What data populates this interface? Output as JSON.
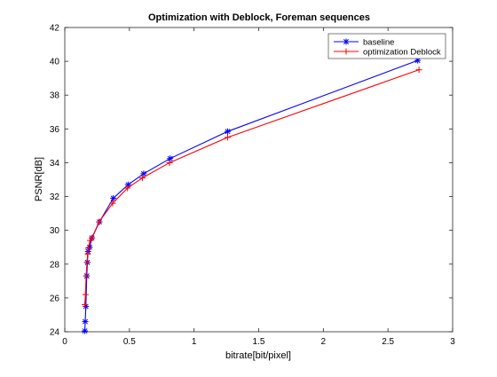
{
  "chart_data": {
    "type": "line",
    "title": "Optimization with Deblock, Foreman sequences",
    "xlabel": "bitrate[bit/pixel]",
    "ylabel": "PSNR[dB]",
    "xlim": [
      0,
      3
    ],
    "ylim": [
      24,
      42
    ],
    "xticks": [
      0,
      0.5,
      1,
      1.5,
      2,
      2.5,
      3
    ],
    "xtick_labels": [
      "0",
      "0.5",
      "1",
      "1.5",
      "2",
      "2.5",
      "3"
    ],
    "yticks": [
      24,
      26,
      28,
      30,
      32,
      34,
      36,
      38,
      40,
      42
    ],
    "ytick_labels": [
      "24",
      "26",
      "28",
      "30",
      "32",
      "34",
      "36",
      "38",
      "40",
      "42"
    ],
    "grid": false,
    "legend_position": "top-right",
    "series": [
      {
        "name": "baseline",
        "color": "#0000ff",
        "marker": "star",
        "x": [
          0.155,
          0.158,
          0.163,
          0.17,
          0.175,
          0.18,
          0.192,
          0.21,
          0.268,
          0.375,
          0.49,
          0.61,
          0.815,
          1.26,
          2.73
        ],
        "y": [
          24.05,
          24.6,
          25.5,
          27.3,
          28.1,
          28.75,
          29.0,
          29.55,
          30.5,
          31.9,
          32.7,
          33.35,
          34.25,
          35.85,
          40.05
        ]
      },
      {
        "name": "optimization Deblock",
        "color": "#ff0000",
        "marker": "plus",
        "x": [
          0.155,
          0.16,
          0.165,
          0.172,
          0.177,
          0.182,
          0.195,
          0.21,
          0.265,
          0.37,
          0.485,
          0.6,
          0.81,
          1.26,
          2.74
        ],
        "y": [
          25.6,
          26.2,
          27.3,
          28.1,
          28.6,
          28.95,
          29.4,
          29.55,
          30.5,
          31.6,
          32.5,
          33.1,
          34.0,
          35.5,
          39.5
        ]
      }
    ]
  }
}
